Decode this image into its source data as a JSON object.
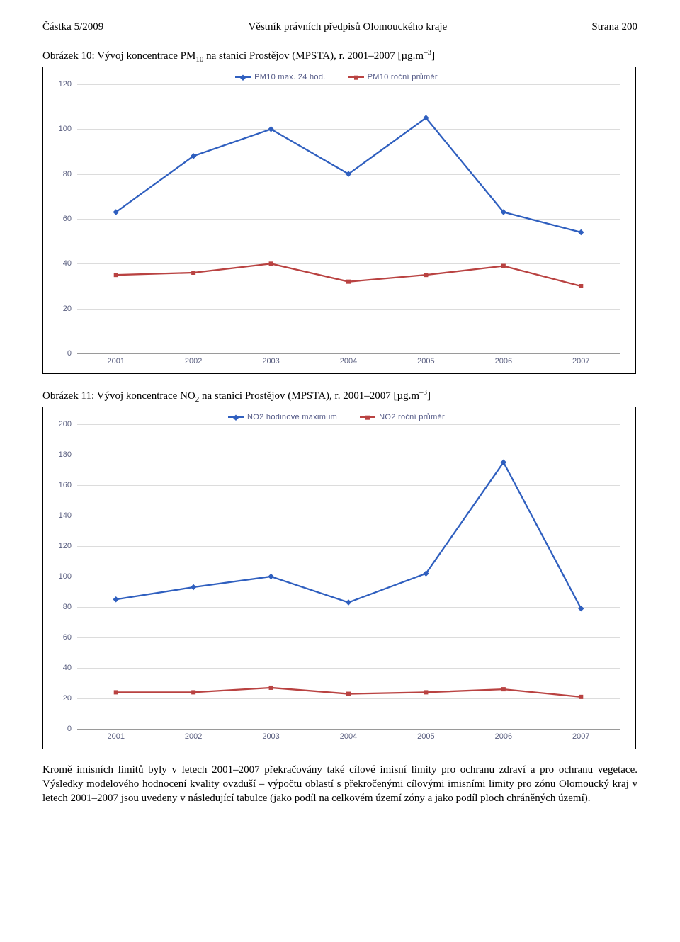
{
  "header": {
    "left": "Částka 5/2009",
    "center": "Věstník právních předpisů Olomouckého kraje",
    "right": "Strana 200"
  },
  "figure1": {
    "caption_pre": "Obrázek 10: Vývoj koncentrace PM",
    "caption_sub": "10",
    "caption_mid": " na stanici Prostějov (MPSTA), r. 2001–2007 [µg.m",
    "caption_sup": "–3",
    "caption_post": "]",
    "chart": {
      "type": "line",
      "legend": [
        {
          "label": "PM10 max. 24 hod.",
          "color": "#2f5fbf",
          "marker": "diamond"
        },
        {
          "label": "PM10 roční průměr",
          "color": "#b94241",
          "marker": "square"
        }
      ],
      "x_categories": [
        "2001",
        "2002",
        "2003",
        "2004",
        "2005",
        "2006",
        "2007"
      ],
      "y_ticks": [
        0,
        20,
        40,
        60,
        80,
        100,
        120
      ],
      "ymin": 0,
      "ymax": 120,
      "series": [
        {
          "color": "#2f5fbf",
          "marker": "diamond",
          "values": [
            63,
            88,
            100,
            80,
            105,
            63,
            54
          ]
        },
        {
          "color": "#b94241",
          "marker": "square",
          "values": [
            35,
            36,
            40,
            32,
            35,
            39,
            30
          ]
        }
      ],
      "grid_color": "#dcdcdc",
      "label_color": "#5a5f80",
      "background": "#ffffff",
      "line_width": 2.3
    }
  },
  "figure2": {
    "caption_pre": "Obrázek 11: Vývoj koncentrace NO",
    "caption_sub": "2",
    "caption_mid": " na stanici Prostějov (MPSTA), r. 2001–2007 [µg.m",
    "caption_sup": "–3",
    "caption_post": "]",
    "chart": {
      "type": "line",
      "legend": [
        {
          "label": "NO2 hodinové maximum",
          "color": "#2f5fbf",
          "marker": "diamond"
        },
        {
          "label": "NO2 roční průměr",
          "color": "#b94241",
          "marker": "square"
        }
      ],
      "x_categories": [
        "2001",
        "2002",
        "2003",
        "2004",
        "2005",
        "2006",
        "2007"
      ],
      "y_ticks": [
        0,
        20,
        40,
        60,
        80,
        100,
        120,
        140,
        160,
        180,
        200
      ],
      "ymin": 0,
      "ymax": 200,
      "series": [
        {
          "color": "#2f5fbf",
          "marker": "diamond",
          "values": [
            85,
            93,
            100,
            83,
            102,
            175,
            79
          ]
        },
        {
          "color": "#b94241",
          "marker": "square",
          "values": [
            24,
            24,
            27,
            23,
            24,
            26,
            21
          ]
        }
      ],
      "grid_color": "#dcdcdc",
      "label_color": "#5a5f80",
      "background": "#ffffff",
      "line_width": 2.3
    }
  },
  "body_text": "Kromě imisních limitů byly v letech 2001–2007 překračovány také cílové imisní limity pro ochranu zdraví a pro ochranu vegetace. Výsledky modelového hodnocení kvality ovzduší – výpočtu oblastí s překročenými cílovými imisními limity pro zónu Olomoucký kraj v letech 2001–2007 jsou uvedeny v následující tabulce (jako podíl na celkovém území zóny a jako podíl ploch chráněných území)."
}
